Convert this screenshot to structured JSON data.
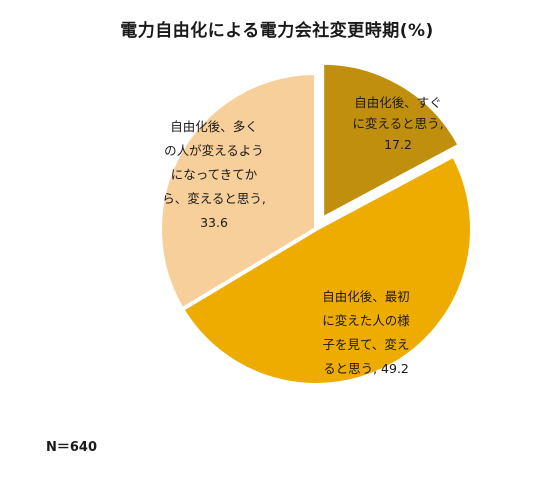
{
  "chart_data": {
    "type": "pie",
    "title": "電力自由化による電力会社変更時期(%)",
    "slices": [
      {
        "label_lines": [
          "自由化後、すぐ",
          "に変えると思う,",
          "17.2"
        ],
        "value": 17.2,
        "color": "#c08f0d",
        "exploded": true
      },
      {
        "label_lines": [
          "自由化後、最初",
          "に変えた人の様",
          "子を見て、変え",
          "ると思う, 49.2"
        ],
        "value": 49.2,
        "color": "#eeab00"
      },
      {
        "label_lines": [
          "自由化後、多く",
          "の人が変えるよう",
          "になってきてか",
          "ら、変えると思う,",
          "33.6"
        ],
        "value": 33.6,
        "color": "#f6cf9a"
      }
    ]
  },
  "note": "N＝640"
}
